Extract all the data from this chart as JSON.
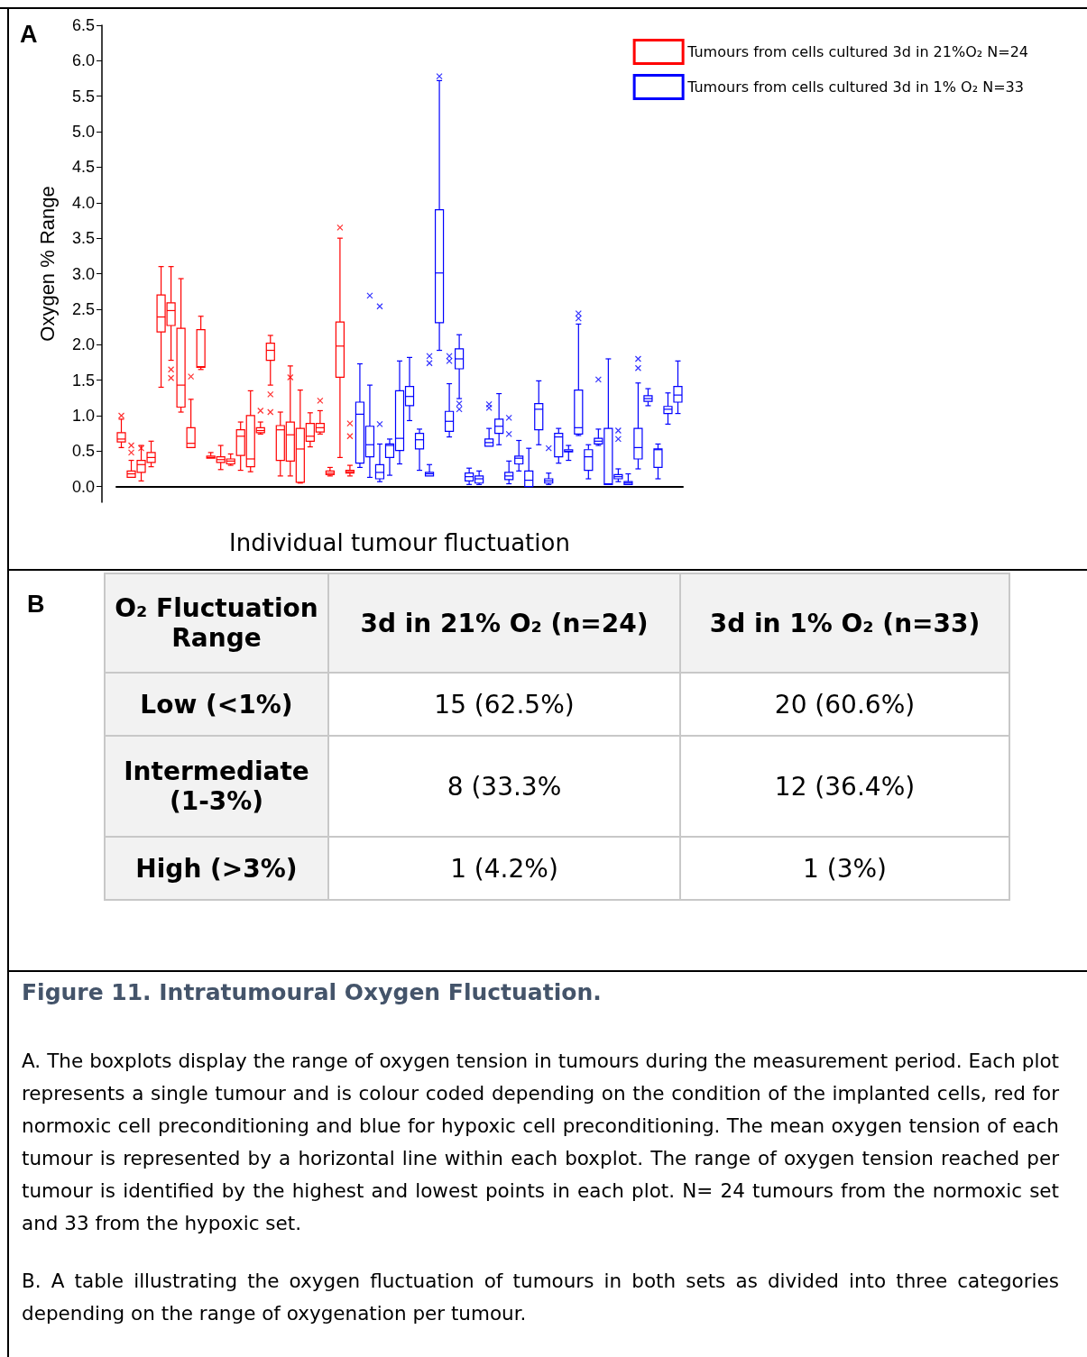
{
  "chart_data": [
    {
      "type": "box",
      "xlabel": "Individual tumour fluctuation",
      "ylabel": "Oxygen % Range",
      "annotations": [
        "A"
      ],
      "legend": "top right",
      "tick_labels": "y",
      "categories": [
        null,
        null,
        null,
        null,
        null,
        null,
        null,
        null,
        null,
        null,
        null,
        null,
        null,
        null,
        null,
        null,
        null,
        null,
        null,
        null,
        null,
        null,
        null,
        null,
        null,
        null,
        null,
        null,
        null,
        null,
        null,
        null,
        null,
        null,
        null,
        null,
        null,
        null,
        null,
        null,
        null,
        null,
        null,
        null,
        null,
        null,
        null,
        null,
        null,
        null,
        null,
        null,
        null,
        null,
        null,
        null,
        null
      ],
      "ylim": [
        -0.22,
        6.5
      ],
      "yticks": [
        {
          "value": 0,
          "label": "0.0"
        },
        {
          "value": 0.5,
          "label": "0.5"
        },
        {
          "value": 1,
          "label": "1.0"
        },
        {
          "value": 1.5,
          "label": "1.5"
        },
        {
          "value": 2,
          "label": "2.0"
        },
        {
          "value": 2.5,
          "label": "2.5"
        },
        {
          "value": 3,
          "label": "3.0"
        },
        {
          "value": 3.5,
          "label": "3.5"
        },
        {
          "value": 4,
          "label": "4.0"
        },
        {
          "value": 4.5,
          "label": "4.5"
        },
        {
          "value": 5,
          "label": "5.0"
        },
        {
          "value": 5.5,
          "label": "5.5"
        },
        {
          "value": 6,
          "label": "6.0"
        },
        {
          "value": 6.5,
          "label": "6.5"
        }
      ],
      "series": [
        {
          "name": "Tumours from cells cultured 3d in 21%O₂ N=24",
          "color": "#ff0000",
          "boxes": [
            {
              "low": 0.55,
              "q1": 0.63,
              "median": 0.67,
              "q3": 0.76,
              "high": 0.95,
              "outliers": [
                1.0
              ]
            },
            {
              "low": 0.13,
              "q1": 0.13,
              "median": 0.18,
              "q3": 0.22,
              "high": 0.37,
              "outliers": [
                0.48,
                0.58
              ]
            },
            {
              "low": 0.08,
              "q1": 0.2,
              "median": 0.31,
              "q3": 0.37,
              "high": 0.58,
              "outliers": [
                0.54
              ]
            },
            {
              "low": 0.28,
              "q1": 0.34,
              "median": 0.41,
              "q3": 0.48,
              "high": 0.64
            },
            {
              "low": 1.4,
              "q1": 2.18,
              "median": 2.39,
              "q3": 2.7,
              "high": 3.1
            },
            {
              "low": 1.78,
              "q1": 2.27,
              "median": 2.48,
              "q3": 2.59,
              "high": 3.1,
              "outliers": [
                1.65,
                1.53
              ]
            },
            {
              "low": 1.05,
              "q1": 1.12,
              "median": 1.43,
              "q3": 2.23,
              "high": 2.93
            },
            {
              "low": 0.55,
              "q1": 0.55,
              "median": 0.61,
              "q3": 0.83,
              "high": 1.23,
              "outliers": [
                1.55
              ]
            },
            {
              "low": 1.65,
              "q1": 1.68,
              "median": 1.69,
              "q3": 2.21,
              "high": 2.4
            },
            {
              "low": 0.4,
              "q1": 0.4,
              "median": 0.41,
              "q3": 0.43,
              "high": 0.48
            },
            {
              "low": 0.24,
              "q1": 0.34,
              "median": 0.38,
              "q3": 0.42,
              "high": 0.58
            },
            {
              "low": 0.3,
              "q1": 0.32,
              "median": 0.36,
              "q3": 0.39,
              "high": 0.46
            },
            {
              "low": 0.23,
              "q1": 0.44,
              "median": 0.71,
              "q3": 0.8,
              "high": 0.91
            },
            {
              "low": 0.21,
              "q1": 0.28,
              "median": 0.39,
              "q3": 1.0,
              "high": 1.35
            },
            {
              "low": 0.74,
              "q1": 0.76,
              "median": 0.79,
              "q3": 0.83,
              "high": 0.91,
              "outliers": [
                1.07
              ]
            },
            {
              "low": 1.43,
              "q1": 1.78,
              "median": 1.92,
              "q3": 2.02,
              "high": 2.13,
              "outliers": [
                1.3,
                1.05
              ]
            },
            {
              "low": 0.15,
              "q1": 0.37,
              "median": 0.8,
              "q3": 0.86,
              "high": 1.05
            },
            {
              "low": 0.15,
              "q1": 0.36,
              "median": 0.73,
              "q3": 0.91,
              "high": 1.7,
              "outliers": [
                1.54
              ]
            },
            {
              "low": 0.05,
              "q1": 0.06,
              "median": 0.53,
              "q3": 0.82,
              "high": 1.36
            },
            {
              "low": 0.56,
              "q1": 0.64,
              "median": 0.71,
              "q3": 0.89,
              "high": 1.04
            },
            {
              "low": 0.74,
              "q1": 0.77,
              "median": 0.83,
              "q3": 0.89,
              "high": 1.07,
              "outliers": [
                1.21
              ]
            },
            {
              "low": 0.15,
              "q1": 0.17,
              "median": 0.19,
              "q3": 0.22,
              "high": 0.27
            },
            {
              "low": 0.41,
              "q1": 1.54,
              "median": 1.98,
              "q3": 2.32,
              "high": 3.5,
              "outliers": [
                3.65
              ]
            },
            {
              "low": 0.15,
              "q1": 0.19,
              "median": 0.21,
              "q3": 0.23,
              "high": 0.3,
              "outliers": [
                0.71,
                0.89
              ]
            },
            null,
            null,
            null,
            null,
            null,
            null,
            null,
            null,
            null,
            null,
            null,
            null,
            null,
            null,
            null,
            null,
            null,
            null,
            null,
            null,
            null,
            null,
            null,
            null,
            null,
            null,
            null,
            null,
            null,
            null,
            null,
            null,
            null
          ]
        },
        {
          "name": "Tumours from cells cultured 3d in 1% O₂ N=33",
          "color": "#0000ff",
          "boxes": [
            null,
            null,
            null,
            null,
            null,
            null,
            null,
            null,
            null,
            null,
            null,
            null,
            null,
            null,
            null,
            null,
            null,
            null,
            null,
            null,
            null,
            null,
            null,
            null,
            {
              "low": 0.27,
              "q1": 0.33,
              "median": 1.02,
              "q3": 1.19,
              "high": 1.73
            },
            {
              "low": 0.13,
              "q1": 0.42,
              "median": 0.59,
              "q3": 0.85,
              "high": 1.43,
              "outliers": [
                2.69
              ]
            },
            {
              "low": 0.07,
              "q1": 0.11,
              "median": 0.2,
              "q3": 0.31,
              "high": 0.6,
              "outliers": [
                0.88,
                2.54
              ]
            },
            {
              "low": 0.16,
              "q1": 0.41,
              "median": 0.58,
              "q3": 0.6,
              "high": 0.67
            },
            {
              "low": 0.32,
              "q1": 0.51,
              "median": 0.68,
              "q3": 1.35,
              "high": 1.77
            },
            {
              "low": 0.93,
              "q1": 1.14,
              "median": 1.27,
              "q3": 1.41,
              "high": 1.82
            },
            {
              "low": 0.23,
              "q1": 0.53,
              "median": 0.66,
              "q3": 0.75,
              "high": 0.81
            },
            {
              "low": 0.15,
              "q1": 0.15,
              "median": 0.18,
              "q3": 0.2,
              "high": 0.31,
              "outliers": [
                1.74,
                1.84
              ]
            },
            {
              "low": 1.92,
              "q1": 2.31,
              "median": 3.01,
              "q3": 3.9,
              "high": 5.72,
              "outliers": [
                5.78
              ]
            },
            {
              "low": 0.7,
              "q1": 0.78,
              "median": 0.92,
              "q3": 1.06,
              "high": 1.45,
              "outliers": [
                1.77,
                1.84
              ]
            },
            {
              "low": 1.24,
              "q1": 1.66,
              "median": 1.8,
              "q3": 1.94,
              "high": 2.14,
              "outliers": [
                1.17,
                1.09
              ]
            },
            {
              "low": 0.03,
              "q1": 0.08,
              "median": 0.14,
              "q3": 0.19,
              "high": 0.26
            },
            {
              "low": 0.03,
              "q1": 0.05,
              "median": 0.11,
              "q3": 0.15,
              "high": 0.22
            },
            {
              "low": 0.57,
              "q1": 0.57,
              "median": 0.62,
              "q3": 0.67,
              "high": 0.82,
              "outliers": [
                1.11,
                1.16
              ]
            },
            {
              "low": 0.59,
              "q1": 0.75,
              "median": 0.85,
              "q3": 0.95,
              "high": 1.31
            },
            {
              "low": 0.04,
              "q1": 0.1,
              "median": 0.15,
              "q3": 0.2,
              "high": 0.36,
              "outliers": [
                0.74,
                0.97
              ]
            },
            {
              "low": 0.22,
              "q1": 0.32,
              "median": 0.4,
              "q3": 0.43,
              "high": 0.65
            },
            {
              "low": 0.0,
              "q1": 0.0,
              "median": 0.09,
              "q3": 0.22,
              "high": 0.54
            },
            {
              "low": 0.59,
              "q1": 0.8,
              "median": 1.09,
              "q3": 1.17,
              "high": 1.49
            },
            {
              "low": 0.03,
              "q1": 0.05,
              "median": 0.08,
              "q3": 0.11,
              "high": 0.19,
              "outliers": [
                0.54
              ]
            },
            {
              "low": 0.33,
              "q1": 0.42,
              "median": 0.7,
              "q3": 0.75,
              "high": 0.82
            },
            {
              "low": 0.37,
              "q1": 0.49,
              "median": 0.5,
              "q3": 0.52,
              "high": 0.58
            },
            {
              "low": 0.72,
              "q1": 0.74,
              "median": 0.83,
              "q3": 1.36,
              "high": 2.29,
              "outliers": [
                2.37,
                2.44
              ]
            },
            {
              "low": 0.11,
              "q1": 0.23,
              "median": 0.42,
              "q3": 0.52,
              "high": 0.59
            },
            {
              "low": 0.58,
              "q1": 0.6,
              "median": 0.64,
              "q3": 0.68,
              "high": 0.81,
              "outliers": [
                1.51
              ]
            },
            {
              "low": 0.03,
              "q1": 0.03,
              "median": 0.04,
              "q3": 0.82,
              "high": 1.8
            },
            {
              "low": 0.07,
              "q1": 0.11,
              "median": 0.14,
              "q3": 0.17,
              "high": 0.25,
              "outliers": [
                0.67,
                0.79
              ]
            },
            {
              "low": 0.03,
              "q1": 0.03,
              "median": 0.05,
              "q3": 0.07,
              "high": 0.18
            },
            {
              "low": 0.25,
              "q1": 0.39,
              "median": 0.55,
              "q3": 0.82,
              "high": 1.46,
              "outliers": [
                1.67,
                1.8
              ]
            },
            {
              "low": 1.14,
              "q1": 1.2,
              "median": 1.24,
              "q3": 1.28,
              "high": 1.38
            },
            {
              "low": 0.11,
              "q1": 0.27,
              "median": 0.52,
              "q3": 0.53,
              "high": 0.6
            },
            {
              "low": 0.88,
              "q1": 1.03,
              "median": 1.09,
              "q3": 1.13,
              "high": 1.32
            },
            {
              "low": 1.03,
              "q1": 1.19,
              "median": 1.29,
              "q3": 1.41,
              "high": 1.77
            }
          ]
        }
      ]
    },
    {
      "type": "other",
      "annotations": [
        "B",
        "O₂ Fluctuation Range",
        "3d in 21% O₂ (n=24)",
        "3d in 1% O₂ (n=33)",
        "Low (<1%)",
        "15 (62.5%)",
        "20 (60.6%)",
        "Intermediate (1-3%)",
        "8 (33.3%",
        "12 (36.4%)",
        "High (>3%)",
        "1 (4.2%)",
        "1 (3%)"
      ]
    },
    {
      "type": "other",
      "title": "Figure 11. Intratumoural Oxygen Fluctuation.",
      "annotations": [
        "A. The boxplots display the range of oxygen tension in tumours during the measurement period. Each plot represents a single tumour and is colour coded depending on the condition of the implanted cells, red for normoxic cell preconditioning and blue for hypoxic cell preconditioning. The mean oxygen tension of each tumour is represented by a horizontal line within each boxplot. The range of oxygen tension reached per tumour is identified by the highest and lowest points in each plot. N= 24 tumours from the normoxic set and 33 from the hypoxic set.",
        "B. A table illustrating the oxygen fluctuation of tumours in both sets as divided into three categories depending on the range of oxygenation per tumour."
      ]
    }
  ]
}
